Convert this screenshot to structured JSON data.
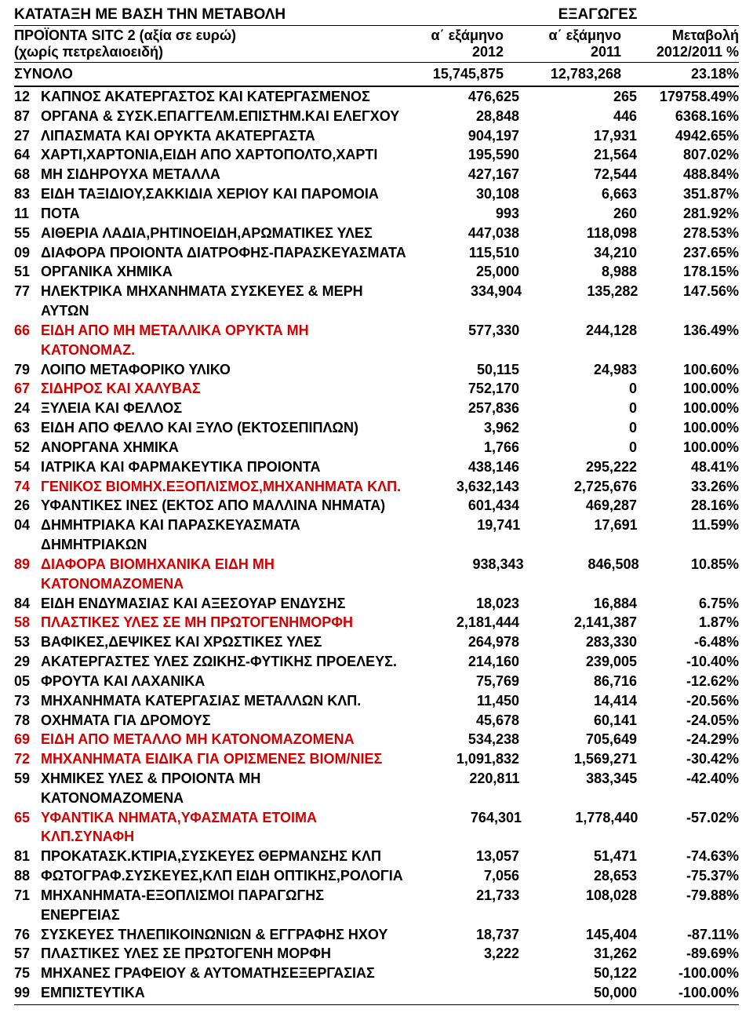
{
  "title_left": "ΚΑΤΑΤΑΞΗ ΜΕ ΒΑΣΗ ΤΗΝ ΜΕΤΑΒΟΛΗ",
  "title_right": "ΕΞΑΓΩΓΕΣ",
  "header": {
    "desc_line1": "ΠΡΟΪΟΝΤΑ SITC 2 (αξία σε ευρώ)",
    "desc_line2": "(χωρίς πετρελαιοειδή)",
    "col1_line1": "α΄ εξάμηνο",
    "col1_line2": "2012",
    "col2_line1": "α΄ εξάμηνο",
    "col2_line2": "2011",
    "col3_line1": "Μεταβολή",
    "col3_line2": "2012/2011 %"
  },
  "total": {
    "label": "ΣΥΝΟΛΟ",
    "v2012": "15,745,875",
    "v2011": "12,783,268",
    "pct": "23.18%"
  },
  "colors": {
    "text": "#000000",
    "highlight": "#d00000",
    "background": "#ffffff"
  },
  "rows": [
    {
      "code": "12",
      "desc": "ΚΑΠΝΟΣ ΑΚΑΤΕΡΓΑΣΤΟΣ ΚΑΙ ΚΑΤΕΡΓΑΣΜΕΝΟΣ",
      "v1": "476,625",
      "v2": "265",
      "pct": "179758.49%",
      "red": false
    },
    {
      "code": "87",
      "desc": "ΟΡΓΑΝΑ & ΣΥΣΚ.ΕΠΑΓΓΕΛΜ.ΕΠΙΣΤΗΜ.ΚΑΙ ΕΛΕΓΧΟΥ",
      "v1": "28,848",
      "v2": "446",
      "pct": "6368.16%",
      "red": false
    },
    {
      "code": "27",
      "desc": "ΛΙΠΑΣΜΑΤΑ ΚΑΙ ΟΡΥΚΤΑ ΑΚΑΤΕΡΓΑΣΤΑ",
      "v1": "904,197",
      "v2": "17,931",
      "pct": "4942.65%",
      "red": false
    },
    {
      "code": "64",
      "desc": "ΧΑΡΤΙ,ΧΑΡΤΟΝΙΑ,ΕΙΔΗ ΑΠΟ ΧΑΡΤΟΠΟΛΤΟ,ΧΑΡΤΙ",
      "v1": "195,590",
      "v2": "21,564",
      "pct": "807.02%",
      "red": false
    },
    {
      "code": "68",
      "desc": "ΜΗ ΣΙΔΗΡΟΥΧΑ ΜΕΤΑΛΛΑ",
      "v1": "427,167",
      "v2": "72,544",
      "pct": "488.84%",
      "red": false
    },
    {
      "code": "83",
      "desc": "ΕΙΔΗ ΤΑΞΙΔΙΟΥ,ΣΑΚΚΙΔΙΑ ΧΕΡΙΟΥ ΚΑΙ ΠΑΡΟΜΟΙΑ",
      "v1": "30,108",
      "v2": "6,663",
      "pct": "351.87%",
      "red": false
    },
    {
      "code": "11",
      "desc": "ΠΟΤΑ",
      "v1": "993",
      "v2": "260",
      "pct": "281.92%",
      "red": false
    },
    {
      "code": "55",
      "desc": "ΑΙΘΕΡΙΑ ΛΑΔΙΑ,ΡΗΤΙΝΟΕΙΔΗ,ΑΡΩΜΑΤΙΚΕΣ ΥΛΕΣ",
      "v1": "447,038",
      "v2": "118,098",
      "pct": "278.53%",
      "red": false
    },
    {
      "code": "09",
      "desc": "ΔΙΑΦΟΡΑ ΠΡΟΙΟΝΤΑ ΔΙΑΤΡΟΦΗΣ-ΠΑΡΑΣΚΕΥΑΣΜΑΤΑ",
      "v1": "115,510",
      "v2": "34,210",
      "pct": "237.65%",
      "red": false
    },
    {
      "code": "51",
      "desc": "ΟΡΓΑΝΙΚΑ ΧΗΜΙΚΑ",
      "v1": "25,000",
      "v2": "8,988",
      "pct": "178.15%",
      "red": false
    },
    {
      "code": "77",
      "desc": "ΗΛΕΚΤΡΙΚΑ ΜΗΧΑΝΗΜΑΤΑ ΣΥΣΚΕΥΕΣ & ΜΕΡΗ ΑΥΤΩΝ",
      "v1": "334,904",
      "v2": "135,282",
      "pct": "147.56%",
      "red": false
    },
    {
      "code": "66",
      "desc": "ΕΙΔΗ ΑΠΟ ΜΗ ΜΕΤΑΛΛΙΚΑ ΟΡΥΚΤΑ ΜΗ ΚΑΤΟΝΟΜΑΖ.",
      "v1": "577,330",
      "v2": "244,128",
      "pct": "136.49%",
      "red": true
    },
    {
      "code": "79",
      "desc": "ΛΟΙΠΟ ΜΕΤΑΦΟΡΙΚΟ ΥΛΙΚΟ",
      "v1": "50,115",
      "v2": "24,983",
      "pct": "100.60%",
      "red": false
    },
    {
      "code": "67",
      "desc": "ΣΙΔΗΡΟΣ ΚΑΙ ΧΑΛΥΒΑΣ",
      "v1": "752,170",
      "v2": "0",
      "pct": "100.00%",
      "red": true
    },
    {
      "code": "24",
      "desc": "ΞΥΛΕΙΑ ΚΑΙ ΦΕΛΛΟΣ",
      "v1": "257,836",
      "v2": "0",
      "pct": "100.00%",
      "red": false
    },
    {
      "code": "63",
      "desc": "ΕΙΔΗ ΑΠΟ ΦΕΛΛΟ ΚΑΙ ΞΥΛΟ (ΕΚΤΟΣΕΠΙΠΛΩΝ)",
      "v1": "3,962",
      "v2": "0",
      "pct": "100.00%",
      "red": false
    },
    {
      "code": "52",
      "desc": "ΑΝΟΡΓΑΝΑ ΧΗΜΙΚΑ",
      "v1": "1,766",
      "v2": "0",
      "pct": "100.00%",
      "red": false
    },
    {
      "code": "54",
      "desc": "ΙΑΤΡΙΚΑ ΚΑΙ ΦΑΡΜΑΚΕΥΤΙΚΑ ΠΡΟΙΟΝΤΑ",
      "v1": "438,146",
      "v2": "295,222",
      "pct": "48.41%",
      "red": false
    },
    {
      "code": "74",
      "desc": "ΓΕΝΙΚΟΣ ΒΙΟΜΗΧ.ΕΞΟΠΛΙΣΜΟΣ,ΜΗΧΑΝΗΜΑΤΑ ΚΛΠ.",
      "v1": "3,632,143",
      "v2": "2,725,676",
      "pct": "33.26%",
      "red": true
    },
    {
      "code": "26",
      "desc": "ΥΦΑΝΤΙΚΕΣ ΙΝΕΣ (ΕΚΤΟΣ ΑΠΟ ΜΑΛΛΙΝΑ ΝΗΜΑΤΑ)",
      "v1": "601,434",
      "v2": "469,287",
      "pct": "28.16%",
      "red": false
    },
    {
      "code": "04",
      "desc": "ΔΗΜΗΤΡΙΑΚΑ ΚΑΙ ΠΑΡΑΣΚΕΥΑΣΜΑΤΑ ΔΗΜΗΤΡΙΑΚΩΝ",
      "v1": "19,741",
      "v2": "17,691",
      "pct": "11.59%",
      "red": false
    },
    {
      "code": "89",
      "desc": "ΔΙΑΦΟΡΑ ΒΙΟΜΗΧΑΝΙΚΑ ΕΙΔΗ ΜΗ ΚΑΤΟΝΟΜΑΖΟΜΕΝΑ",
      "v1": "938,343",
      "v2": "846,508",
      "pct": "10.85%",
      "red": true
    },
    {
      "code": "84",
      "desc": "ΕΙΔΗ ΕΝΔΥΜΑΣΙΑΣ ΚΑΙ ΑΞΕΣΟΥΑΡ ΕΝΔΥΣΗΣ",
      "v1": "18,023",
      "v2": "16,884",
      "pct": "6.75%",
      "red": false
    },
    {
      "code": "58",
      "desc": "ΠΛΑΣΤΙΚΕΣ ΥΛΕΣ ΣΕ ΜΗ ΠΡΩΤΟΓΕΝΗΜΟΡΦΗ",
      "v1": "2,181,444",
      "v2": "2,141,387",
      "pct": "1.87%",
      "red": true
    },
    {
      "code": "53",
      "desc": "ΒΑΦΙΚΕΣ,ΔΕΨΙΚΕΣ ΚΑΙ ΧΡΩΣΤΙΚΕΣ ΥΛΕΣ",
      "v1": "264,978",
      "v2": "283,330",
      "pct": "-6.48%",
      "red": false
    },
    {
      "code": "29",
      "desc": "ΑΚΑΤΕΡΓΑΣΤΕΣ ΥΛΕΣ ΖΩΙΚΗΣ-ΦΥΤΙΚΗΣ ΠΡΟΕΛΕΥΣ.",
      "v1": "214,160",
      "v2": "239,005",
      "pct": "-10.40%",
      "red": false
    },
    {
      "code": "05",
      "desc": "ΦΡΟΥΤΑ ΚΑΙ ΛΑΧΑΝΙΚΑ",
      "v1": "75,769",
      "v2": "86,716",
      "pct": "-12.62%",
      "red": false
    },
    {
      "code": "73",
      "desc": "ΜΗΧΑΝΗΜΑΤΑ ΚΑΤΕΡΓΑΣΙΑΣ ΜΕΤΑΛΛΩΝ ΚΛΠ.",
      "v1": "11,450",
      "v2": "14,414",
      "pct": "-20.56%",
      "red": false
    },
    {
      "code": "78",
      "desc": "ΟΧΗΜΑΤΑ ΓΙΑ ΔΡΟΜΟΥΣ",
      "v1": "45,678",
      "v2": "60,141",
      "pct": "-24.05%",
      "red": false
    },
    {
      "code": "69",
      "desc": "ΕΙΔΗ ΑΠΟ ΜΕΤΑΛΛΟ ΜΗ ΚΑΤΟΝΟΜΑΖΟΜΕΝΑ",
      "v1": "534,238",
      "v2": "705,649",
      "pct": "-24.29%",
      "red": true
    },
    {
      "code": "72",
      "desc": "ΜΗΧΑΝΗΜΑΤΑ ΕΙΔΙΚΑ ΓΙΑ ΟΡΙΣΜΕΝΕΣ ΒΙΟΜ/ΝΙΕΣ",
      "v1": "1,091,832",
      "v2": "1,569,271",
      "pct": "-30.42%",
      "red": true
    },
    {
      "code": "59",
      "desc": "ΧΗΜΙΚΕΣ ΥΛΕΣ & ΠΡΟΙΟΝΤΑ ΜΗ ΚΑΤΟΝΟΜΑΖΟΜΕΝΑ",
      "v1": "220,811",
      "v2": "383,345",
      "pct": "-42.40%",
      "red": false
    },
    {
      "code": "65",
      "desc": "ΥΦΑΝΤΙΚΑ ΝΗΜΑΤΑ,ΥΦΑΣΜΑΤΑ ΕΤΟΙΜΑ ΚΛΠ.ΣΥΝΑΦΗ",
      "v1": "764,301",
      "v2": "1,778,440",
      "pct": "-57.02%",
      "red": true
    },
    {
      "code": "81",
      "desc": "ΠΡΟΚΑΤΑΣΚ.ΚΤΙΡΙΑ,ΣΥΣΚΕΥΕΣ ΘΕΡΜΑΝΣΗΣ ΚΛΠ",
      "v1": "13,057",
      "v2": "51,471",
      "pct": "-74.63%",
      "red": false
    },
    {
      "code": "88",
      "desc": "ΦΩΤΟΓΡΑΦ.ΣΥΣΚΕΥΕΣ,ΚΛΠ ΕΙΔΗ ΟΠΤΙΚΗΣ,ΡΟΛΟΓΙΑ",
      "v1": "7,056",
      "v2": "28,653",
      "pct": "-75.37%",
      "red": false
    },
    {
      "code": "71",
      "desc": "ΜΗΧΑΝΗΜΑΤΑ-ΕΞΟΠΛΙΣΜΟΙ ΠΑΡΑΓΩΓΗΣ ΕΝΕΡΓΕΙΑΣ",
      "v1": "21,733",
      "v2": "108,028",
      "pct": "-79.88%",
      "red": false
    },
    {
      "code": "76",
      "desc": "ΣΥΣΚΕΥΕΣ ΤΗΛΕΠΙΚΟΙΝΩΝΙΩΝ & ΕΓΓΡΑΦΗΣ ΗΧΟΥ",
      "v1": "18,737",
      "v2": "145,404",
      "pct": "-87.11%",
      "red": false
    },
    {
      "code": "57",
      "desc": "ΠΛΑΣΤΙΚΕΣ ΥΛΕΣ ΣΕ ΠΡΩΤΟΓΕΝΗ ΜΟΡΦΗ",
      "v1": "3,222",
      "v2": "31,262",
      "pct": "-89.69%",
      "red": false
    },
    {
      "code": "75",
      "desc": "ΜΗΧΑΝΕΣ ΓΡΑΦΕΙΟΥ & ΑΥΤΟΜΑΤΗΣΕΞΕΡΓΑΣΙΑΣ",
      "v1": "",
      "v2": "50,122",
      "pct": "-100.00%",
      "red": false
    },
    {
      "code": "99",
      "desc": "ΕΜΠΙΣΤΕΥΤΙΚΑ",
      "v1": "",
      "v2": "50,000",
      "pct": "-100.00%",
      "red": false
    }
  ]
}
